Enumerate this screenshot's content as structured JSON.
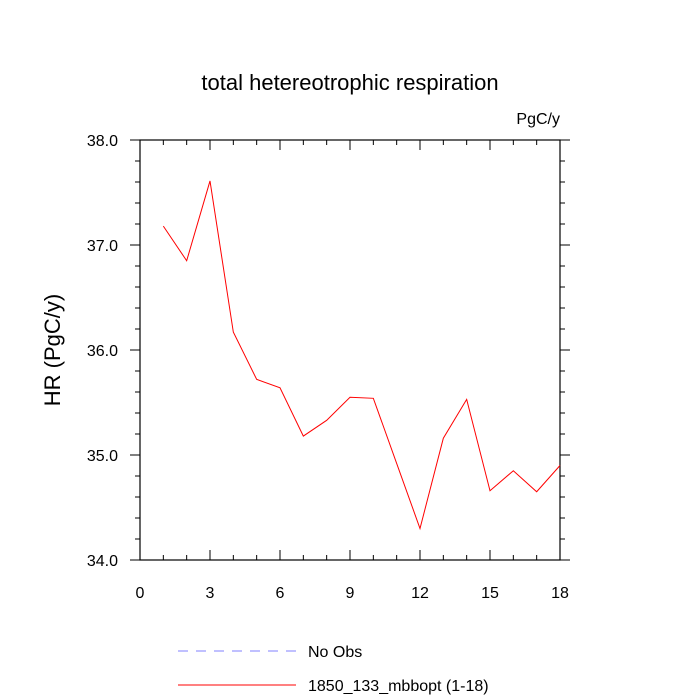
{
  "chart_data": {
    "type": "line",
    "title": "total hetereotrophic respiration",
    "units_label": "PgC/y",
    "xlabel": "",
    "ylabel": "HR  (PgC/y)",
    "xlim": [
      0,
      18
    ],
    "ylim": [
      34.0,
      38.0
    ],
    "xticks": [
      0,
      3,
      6,
      9,
      12,
      15,
      18
    ],
    "xtick_labels": [
      "0",
      "3",
      "6",
      "9",
      "12",
      "15",
      "18"
    ],
    "yticks": [
      34.0,
      35.0,
      36.0,
      37.0,
      38.0
    ],
    "ytick_labels": [
      "34.0",
      "35.0",
      "36.0",
      "37.0",
      "38.0"
    ],
    "series": [
      {
        "name": "1850_133_mbbopt (1-18)",
        "color": "#ff0000",
        "style": "solid",
        "x": [
          1,
          2,
          3,
          4,
          5,
          6,
          7,
          8,
          9,
          10,
          11,
          12,
          13,
          14,
          15,
          16,
          17,
          18
        ],
        "y": [
          37.18,
          36.85,
          37.61,
          36.17,
          35.72,
          35.64,
          35.18,
          35.33,
          35.55,
          35.54,
          34.92,
          34.3,
          35.16,
          35.53,
          34.66,
          34.85,
          34.65,
          34.9
        ]
      }
    ],
    "legend": [
      {
        "label": "No Obs",
        "color": "#8080ff",
        "style": "dashed"
      },
      {
        "label": "1850_133_mbbopt (1-18)",
        "color": "#ff0000",
        "style": "solid"
      }
    ],
    "legend_position": "bottom-center",
    "grid": false
  }
}
